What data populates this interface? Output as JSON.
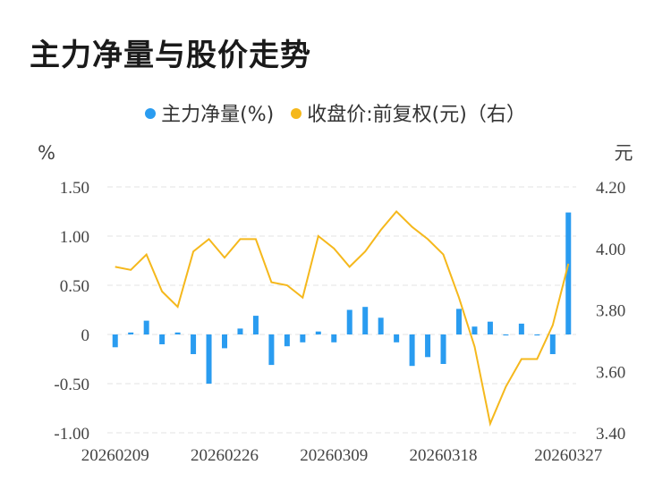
{
  "title": "主力净量与股价走势",
  "colors": {
    "bar": "#2a9cf0",
    "line": "#f5b81c",
    "grid": "#e3e3e3"
  },
  "chart_data": {
    "type": "bar+line",
    "title": "主力净量与股价走势",
    "legend": [
      {
        "label": "主力净量(%)",
        "color": "#2a9cf0"
      },
      {
        "label": "收盘价:前复权(元)（右）",
        "color": "#f5b81c"
      }
    ],
    "left_axis": {
      "unit": "%",
      "range": [
        -1.0,
        1.5
      ],
      "ticks": [
        1.5,
        1.0,
        0.5,
        0,
        -0.5,
        -1.0
      ],
      "tick_labels": [
        "1.50",
        "1.00",
        "0.50",
        "0",
        "-0.50",
        "-1.00"
      ]
    },
    "right_axis": {
      "unit": "元",
      "range": [
        3.4,
        4.2
      ],
      "ticks": [
        4.2,
        4.0,
        3.8,
        3.6,
        3.4
      ],
      "tick_labels": [
        "4.20",
        "4.00",
        "3.80",
        "3.60",
        "3.40"
      ]
    },
    "x_tick_labels": [
      "20260209",
      "20260226",
      "20260309",
      "20260318",
      "20260327"
    ],
    "x_tick_index": [
      0,
      7,
      14,
      21,
      29
    ],
    "series": [
      {
        "name": "主力净量(%)",
        "type": "bar",
        "axis": "left",
        "values": [
          -0.13,
          0.02,
          0.14,
          -0.1,
          0.02,
          -0.2,
          -0.5,
          -0.14,
          0.06,
          0.19,
          -0.31,
          -0.12,
          -0.08,
          0.03,
          -0.08,
          0.25,
          0.28,
          0.17,
          -0.08,
          -0.32,
          -0.23,
          -0.3,
          0.26,
          0.08,
          0.13,
          -0.01,
          0.11,
          -0.01,
          -0.2,
          1.24
        ]
      },
      {
        "name": "收盘价:前复权(元)",
        "type": "line",
        "axis": "right",
        "values": [
          3.94,
          3.93,
          3.98,
          3.86,
          3.81,
          3.99,
          4.03,
          3.97,
          4.03,
          4.03,
          3.89,
          3.88,
          3.84,
          4.04,
          4.0,
          3.94,
          3.99,
          4.06,
          4.12,
          4.07,
          4.03,
          3.98,
          3.84,
          3.68,
          3.43,
          3.55,
          3.64,
          3.64,
          3.75,
          3.95
        ]
      }
    ]
  }
}
